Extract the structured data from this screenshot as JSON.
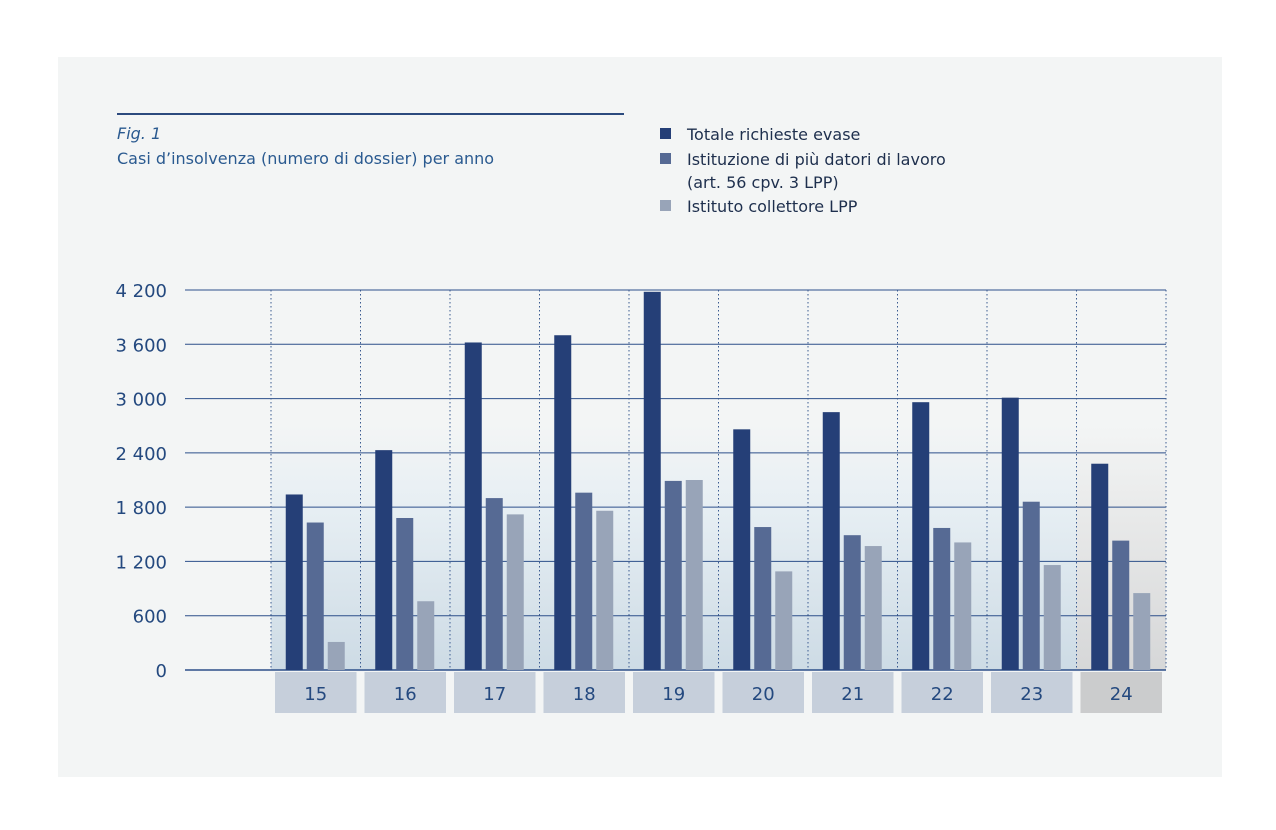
{
  "figure": {
    "label": "Fig. 1",
    "title": "Casi d’insolvenza (numero di dossier) per anno"
  },
  "legend": [
    {
      "text": "Totale richieste evase",
      "text2": "",
      "color": "#253f77"
    },
    {
      "text": "Istituzione di più datori di lavoro",
      "text2": "(art. 56 cpv. 3 LPP)",
      "color": "#566a94"
    },
    {
      "text": "Istituto collettore LPP",
      "text2": "",
      "color": "#98a4b8"
    }
  ],
  "chart_data": {
    "type": "bar",
    "categories": [
      "15",
      "16",
      "17",
      "18",
      "19",
      "20",
      "21",
      "22",
      "23",
      "24"
    ],
    "series": [
      {
        "name": "Totale richieste evase",
        "color": "#253f77",
        "values": [
          1940,
          2430,
          3620,
          3700,
          4180,
          2660,
          2850,
          2960,
          3010,
          2280
        ]
      },
      {
        "name": "Istituzione di più datori di lavoro (art. 56 cpv. 3 LPP)",
        "color": "#566a94",
        "values": [
          1630,
          1680,
          1900,
          1960,
          2090,
          1580,
          1490,
          1570,
          1860,
          1430
        ]
      },
      {
        "name": "Istituto collettore LPP",
        "color": "#98a4b8",
        "values": [
          310,
          760,
          1720,
          1760,
          2100,
          1090,
          1370,
          1410,
          1160,
          850
        ]
      }
    ],
    "yticks": [
      "0",
      "600",
      "1 200",
      "1 800",
      "2 400",
      "3 000",
      "3 600",
      "4 200"
    ],
    "ylim": [
      0,
      4200
    ],
    "xlabel": "",
    "ylabel": "",
    "grid": true,
    "legend_position": "top-right",
    "highlighted_category": "24"
  }
}
